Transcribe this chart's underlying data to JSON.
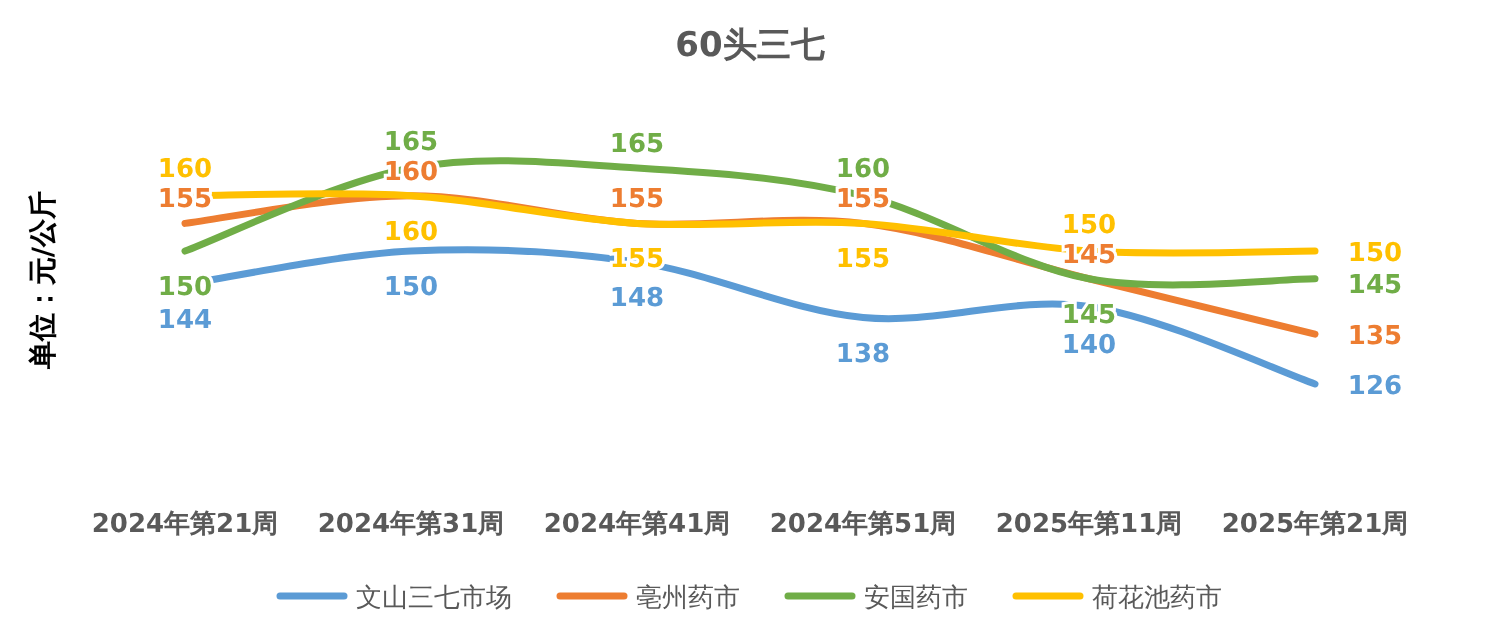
{
  "chart_data": {
    "type": "line",
    "title": "60头三七",
    "ylabel": "单位：元/公斤",
    "categories": [
      "2024年第21周",
      "2024年第31周",
      "2024年第41周",
      "2024年第51周",
      "2025年第11周",
      "2025年第21周"
    ],
    "series": [
      {
        "name": "文山三七市场",
        "color": "#5b9bd5",
        "values": [
          144,
          150,
          148,
          138,
          140,
          126
        ]
      },
      {
        "name": "亳州药市",
        "color": "#ed7d31",
        "values": [
          155,
          160,
          155,
          155,
          145,
          135
        ]
      },
      {
        "name": "安国药市",
        "color": "#70ad47",
        "values": [
          150,
          165,
          165,
          160,
          145,
          145
        ]
      },
      {
        "name": "荷花池药市",
        "color": "#ffc000",
        "values": [
          160,
          160,
          155,
          155,
          150,
          150
        ]
      }
    ],
    "data_labels": true,
    "legend": "bottom",
    "grid": false,
    "marker": "none",
    "line_style": "solid"
  }
}
